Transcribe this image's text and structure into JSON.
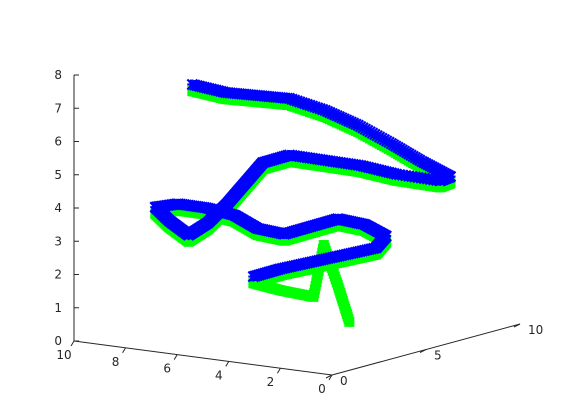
{
  "chart_data": {
    "type": "scatter",
    "projection": "3d",
    "title": "",
    "xlabel": "",
    "ylabel": "",
    "zlabel": "",
    "xlim": [
      0,
      10
    ],
    "ylim": [
      0,
      10
    ],
    "zlim": [
      0,
      8
    ],
    "x_ticks": [
      "10",
      "8",
      "6",
      "4",
      "2",
      "0"
    ],
    "y_ticks": [
      "0",
      "5",
      "10"
    ],
    "z_ticks": [
      "0",
      "1",
      "2",
      "3",
      "4",
      "5",
      "6",
      "7",
      "8"
    ],
    "grid": false,
    "series": [
      {
        "marker": "square",
        "color": "#00ff00",
        "points": [
          [
            7.6,
            3.0,
            7.3
          ],
          [
            6.6,
            3.4,
            7.1
          ],
          [
            5.8,
            4.0,
            7.0
          ],
          [
            5.0,
            4.6,
            6.9
          ],
          [
            4.2,
            5.4,
            6.5
          ],
          [
            3.5,
            6.2,
            6.0
          ],
          [
            2.8,
            7.0,
            5.4
          ],
          [
            2.2,
            7.8,
            4.8
          ],
          [
            1.6,
            8.5,
            4.3
          ],
          [
            1.8,
            8.2,
            4.2
          ],
          [
            2.6,
            7.0,
            4.5
          ],
          [
            3.4,
            6.2,
            4.8
          ],
          [
            4.2,
            5.4,
            5.0
          ],
          [
            5.0,
            4.6,
            5.2
          ],
          [
            5.6,
            4.0,
            5.0
          ],
          [
            6.0,
            3.6,
            4.4
          ],
          [
            6.4,
            3.2,
            3.8
          ],
          [
            7.0,
            3.0,
            3.2
          ],
          [
            7.6,
            2.8,
            2.8
          ],
          [
            8.2,
            2.6,
            3.2
          ],
          [
            8.6,
            2.4,
            3.6
          ],
          [
            8.0,
            2.8,
            3.7
          ],
          [
            7.2,
            3.2,
            3.6
          ],
          [
            6.4,
            3.6,
            3.4
          ],
          [
            5.8,
            4.0,
            3.0
          ],
          [
            5.2,
            4.6,
            2.8
          ],
          [
            4.6,
            5.2,
            3.0
          ],
          [
            4.0,
            5.8,
            3.2
          ],
          [
            3.4,
            6.4,
            3.0
          ],
          [
            3.0,
            7.0,
            2.6
          ],
          [
            3.4,
            7.0,
            2.2
          ],
          [
            4.2,
            6.4,
            2.0
          ],
          [
            5.0,
            5.8,
            1.8
          ],
          [
            5.8,
            5.2,
            1.6
          ],
          [
            6.4,
            4.6,
            1.4
          ],
          [
            5.6,
            5.0,
            1.2
          ],
          [
            4.8,
            5.6,
            1.0
          ],
          [
            4.4,
            5.6,
            2.6
          ],
          [
            4.0,
            5.8,
            1.4
          ],
          [
            3.7,
            6.0,
            0.3
          ]
        ]
      },
      {
        "marker": "x",
        "color": "#0000ff",
        "points": [
          [
            7.6,
            3.0,
            7.5
          ],
          [
            6.6,
            3.4,
            7.3
          ],
          [
            5.8,
            4.0,
            7.2
          ],
          [
            5.0,
            4.6,
            7.1
          ],
          [
            4.2,
            5.4,
            6.7
          ],
          [
            3.5,
            6.2,
            6.2
          ],
          [
            2.8,
            7.0,
            5.6
          ],
          [
            2.2,
            7.8,
            5.0
          ],
          [
            1.6,
            8.5,
            4.5
          ],
          [
            1.8,
            8.2,
            4.4
          ],
          [
            2.6,
            7.0,
            4.7
          ],
          [
            3.4,
            6.2,
            5.0
          ],
          [
            4.2,
            5.4,
            5.2
          ],
          [
            5.0,
            4.6,
            5.4
          ],
          [
            5.6,
            4.0,
            5.2
          ],
          [
            6.0,
            3.6,
            4.6
          ],
          [
            6.4,
            3.2,
            4.0
          ],
          [
            7.0,
            3.0,
            3.4
          ],
          [
            7.6,
            2.8,
            3.0
          ],
          [
            8.2,
            2.6,
            3.4
          ],
          [
            8.6,
            2.4,
            3.8
          ],
          [
            8.0,
            2.8,
            3.9
          ],
          [
            7.2,
            3.2,
            3.8
          ],
          [
            6.4,
            3.6,
            3.6
          ],
          [
            5.8,
            4.0,
            3.2
          ],
          [
            5.2,
            4.6,
            3.0
          ],
          [
            4.6,
            5.2,
            3.2
          ],
          [
            4.0,
            5.8,
            3.4
          ],
          [
            3.4,
            6.4,
            3.2
          ],
          [
            3.0,
            7.0,
            2.8
          ],
          [
            3.4,
            7.0,
            2.4
          ],
          [
            4.2,
            6.4,
            2.2
          ],
          [
            5.0,
            5.8,
            2.0
          ],
          [
            5.8,
            5.2,
            1.8
          ],
          [
            6.4,
            4.6,
            1.6
          ]
        ]
      }
    ]
  }
}
